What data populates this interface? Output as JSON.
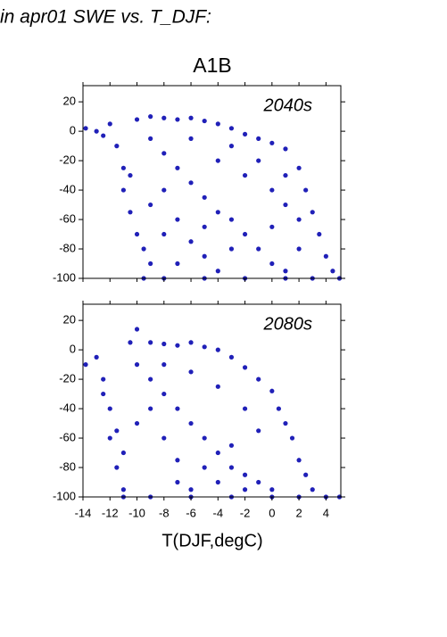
{
  "title": "in apr01 SWE vs. T_DJF:",
  "subtitle": "A1B",
  "xlabel": "T(DJF,degC)",
  "chart_data": [
    {
      "type": "scatter",
      "label": "2040s",
      "color": "#2020b8",
      "xlim": [
        -14,
        5.1
      ],
      "ylim": [
        -100,
        31
      ],
      "xticks": [
        -14,
        -12,
        -10,
        -8,
        -6,
        -4,
        -2,
        0,
        2,
        4
      ],
      "yticks": [
        20,
        0,
        -20,
        -40,
        -60,
        -80,
        -100
      ],
      "x": [
        -13.8,
        -13,
        -12.5,
        -12,
        -11.5,
        -11,
        -11,
        -10.5,
        -10,
        -9.5,
        -9,
        -10,
        -9,
        -8,
        -7,
        -6,
        -5,
        -4,
        -3,
        -2,
        -1,
        0,
        1,
        2,
        2.5,
        3,
        3.5,
        4,
        4.5,
        5,
        3,
        1,
        -2,
        -5,
        -8,
        -9.5,
        -9,
        -8,
        -7,
        -6,
        -5,
        -4,
        -3,
        -2,
        -1,
        0,
        1,
        -6,
        -4,
        -2,
        0,
        1,
        2,
        -3,
        -1,
        1,
        -8,
        -7,
        -6,
        -5,
        -4,
        -10.5,
        -9,
        -8,
        -7,
        0,
        2,
        -5,
        -3
      ],
      "y": [
        2,
        0,
        -3,
        5,
        -10,
        -25,
        -40,
        -55,
        -70,
        -80,
        -90,
        8,
        10,
        9,
        8,
        9,
        7,
        5,
        2,
        -2,
        -5,
        -8,
        -12,
        -25,
        -40,
        -55,
        -70,
        -85,
        -95,
        -100,
        -100,
        -100,
        -100,
        -100,
        -100,
        -100,
        -5,
        -15,
        -25,
        -35,
        -45,
        -55,
        -60,
        -70,
        -80,
        -90,
        -95,
        -5,
        -20,
        -30,
        -40,
        -50,
        -60,
        -10,
        -20,
        -30,
        -40,
        -60,
        -75,
        -85,
        -95,
        -30,
        -50,
        -70,
        -90,
        -65,
        -80,
        -65,
        -80
      ]
    },
    {
      "type": "scatter",
      "label": "2080s",
      "color": "#2020b8",
      "xlim": [
        -14,
        5.1
      ],
      "ylim": [
        -100,
        31
      ],
      "xticks": [
        -14,
        -12,
        -10,
        -8,
        -6,
        -4,
        -2,
        0,
        2,
        4
      ],
      "yticks": [
        20,
        0,
        -20,
        -40,
        -60,
        -80,
        -100
      ],
      "x": [
        -13.8,
        -13,
        -12.5,
        -12,
        -12,
        -11.5,
        -11,
        -10.5,
        -10,
        -9,
        -8,
        -7,
        -6,
        -5,
        -4,
        -3,
        -2,
        -1,
        0,
        0.5,
        1,
        1.5,
        2,
        2.5,
        3,
        4,
        5,
        2,
        0,
        -3,
        -6,
        -9,
        -11,
        -10,
        -9,
        -8,
        -7,
        -6,
        -5,
        -4,
        -3,
        -2,
        -1,
        0,
        -8,
        -6,
        -4,
        -2,
        -1,
        -7,
        -5,
        -3,
        -11,
        -10,
        -9,
        -8,
        -7,
        -6,
        -4,
        -2,
        -12.5,
        -11.5
      ],
      "y": [
        -10,
        -5,
        -20,
        -40,
        -60,
        -80,
        -95,
        5,
        14,
        5,
        4,
        3,
        5,
        2,
        0,
        -5,
        -12,
        -20,
        -28,
        -40,
        -50,
        -60,
        -75,
        -85,
        -95,
        -100,
        -100,
        -100,
        -100,
        -100,
        -100,
        -100,
        -100,
        -10,
        -20,
        -30,
        -40,
        -50,
        -60,
        -70,
        -80,
        -85,
        -90,
        -95,
        -10,
        -15,
        -25,
        -40,
        -55,
        -75,
        -80,
        -65,
        -70,
        -50,
        -40,
        -60,
        -90,
        -95,
        -90,
        -95,
        -30,
        -55
      ]
    }
  ]
}
